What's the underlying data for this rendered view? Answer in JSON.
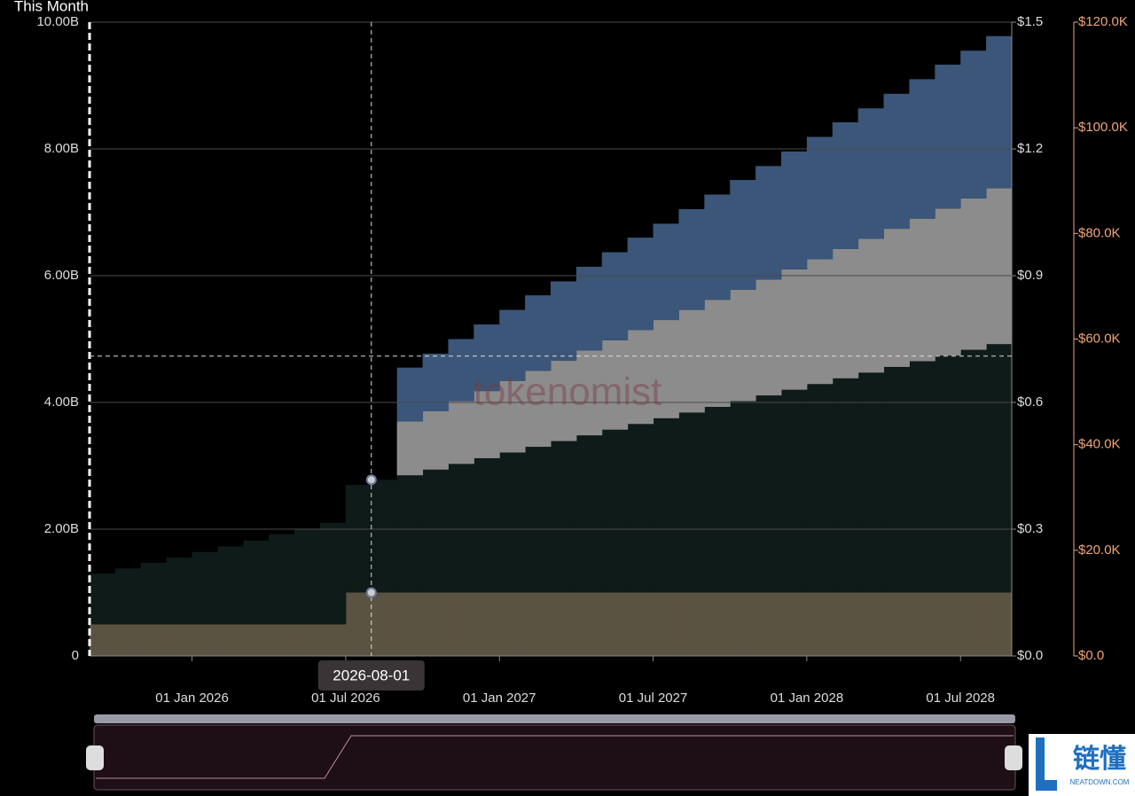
{
  "chart_data": {
    "type": "stacked-step-area",
    "legend": "This Month",
    "categories": [
      "2025-09-01",
      "2025-10-01",
      "2025-11-01",
      "2025-12-01",
      "2026-01-01",
      "2026-02-01",
      "2026-03-01",
      "2026-04-01",
      "2026-05-01",
      "2026-06-01",
      "2026-07-01",
      "2026-08-01",
      "2026-09-01",
      "2026-10-01",
      "2026-11-01",
      "2026-12-01",
      "2027-01-01",
      "2027-02-01",
      "2027-03-01",
      "2027-04-01",
      "2027-05-01",
      "2027-06-01",
      "2027-07-01",
      "2027-08-01",
      "2027-09-01",
      "2027-10-01",
      "2027-11-01",
      "2027-12-01",
      "2028-01-01",
      "2028-02-01",
      "2028-03-01",
      "2028-04-01",
      "2028-05-01",
      "2028-06-01",
      "2028-07-01",
      "2028-08-01"
    ],
    "series": [
      {
        "color": "#5b5341",
        "values": [
          0.5,
          0.5,
          0.5,
          0.5,
          0.5,
          0.5,
          0.5,
          0.5,
          0.5,
          0.5,
          1.0,
          1.0,
          1.0,
          1.0,
          1.0,
          1.0,
          1.0,
          1.0,
          1.0,
          1.0,
          1.0,
          1.0,
          1.0,
          1.0,
          1.0,
          1.0,
          1.0,
          1.0,
          1.0,
          1.0,
          1.0,
          1.0,
          1.0,
          1.0,
          1.0,
          1.0
        ]
      },
      {
        "color": "#0f1b18",
        "values": [
          0.8,
          0.88,
          0.97,
          1.05,
          1.14,
          1.23,
          1.32,
          1.42,
          1.51,
          1.6,
          1.7,
          1.78,
          1.85,
          1.94,
          2.03,
          2.12,
          2.21,
          2.3,
          2.39,
          2.48,
          2.57,
          2.66,
          2.75,
          2.84,
          2.93,
          3.02,
          3.11,
          3.2,
          3.29,
          3.38,
          3.47,
          3.56,
          3.65,
          3.74,
          3.83,
          3.92
        ]
      },
      {
        "color": "#8c8c8c",
        "values": [
          0,
          0,
          0,
          0,
          0,
          0,
          0,
          0,
          0,
          0,
          0,
          0,
          0.85,
          0.92,
          0.99,
          1.06,
          1.13,
          1.2,
          1.27,
          1.34,
          1.41,
          1.48,
          1.55,
          1.62,
          1.69,
          1.76,
          1.83,
          1.9,
          1.97,
          2.04,
          2.11,
          2.18,
          2.25,
          2.32,
          2.39,
          2.46
        ]
      },
      {
        "color": "#3b5679",
        "values": [
          0,
          0,
          0,
          0,
          0,
          0,
          0,
          0,
          0,
          0,
          0,
          0,
          0.85,
          0.91,
          0.98,
          1.05,
          1.12,
          1.19,
          1.25,
          1.32,
          1.39,
          1.46,
          1.52,
          1.59,
          1.66,
          1.73,
          1.79,
          1.86,
          1.93,
          2.0,
          2.06,
          2.13,
          2.2,
          2.27,
          2.33,
          2.4
        ]
      }
    ],
    "ylim": [
      0,
      10
    ],
    "yticks": [
      0,
      {
        "value": 2,
        "label": "2.00B"
      },
      {
        "value": 4,
        "label": "4.00B"
      },
      {
        "value": 6,
        "label": "6.00B"
      },
      {
        "value": 8,
        "label": "8.00B"
      },
      {
        "value": 10,
        "label": "10.00B"
      }
    ],
    "y2lim": [
      0,
      1.5
    ],
    "y2ticks": [
      {
        "value": 0,
        "label": "$0.0"
      },
      {
        "value": 0.3,
        "label": "$0.3"
      },
      {
        "value": 0.6,
        "label": "$0.6"
      },
      {
        "value": 0.9,
        "label": "$0.9"
      },
      {
        "value": 1.2,
        "label": "$1.2"
      },
      {
        "value": 1.5,
        "label": "$1.5"
      }
    ],
    "y3lim": [
      0,
      120000
    ],
    "y3ticks": [
      {
        "value": 0,
        "label": "$0.0"
      },
      {
        "value": 20000,
        "label": "$20.0K"
      },
      {
        "value": 40000,
        "label": "$40.0K"
      },
      {
        "value": 60000,
        "label": "$60.0K"
      },
      {
        "value": 80000,
        "label": "$80.0K"
      },
      {
        "value": 100000,
        "label": "$100.0K"
      },
      {
        "value": 120000,
        "label": "$120.0K"
      }
    ],
    "y3color": "#f0a676",
    "xticks": [
      {
        "value": "2026-01-01",
        "label": "01 Jan 2026"
      },
      {
        "value": "2026-07-01",
        "label": "01 Jul 2026"
      },
      {
        "value": "2027-01-01",
        "label": "01 Jan 2027"
      },
      {
        "value": "2027-07-01",
        "label": "01 Jul 2027"
      },
      {
        "value": "2028-01-01",
        "label": "01 Jan 2028"
      },
      {
        "value": "2028-07-01",
        "label": "01 Jul 2028"
      }
    ],
    "grid": true,
    "crosshair": {
      "x": "2026-08-01",
      "y": 4.73
    },
    "watermark": "tokenomist"
  },
  "logo": {
    "title": "链懂",
    "subtitle": "NEATDOWN.COM"
  }
}
